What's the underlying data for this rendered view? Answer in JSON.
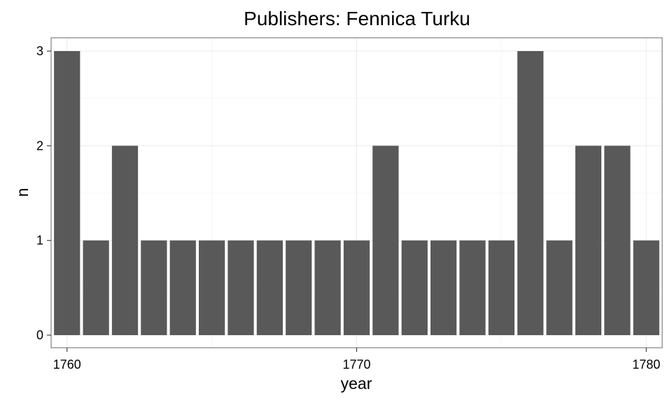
{
  "chart_data": {
    "type": "bar",
    "title": "Publishers: Fennica Turku",
    "xlabel": "year",
    "ylabel": "n",
    "x": [
      1760,
      1761,
      1762,
      1763,
      1764,
      1765,
      1766,
      1767,
      1768,
      1769,
      1770,
      1771,
      1772,
      1773,
      1774,
      1775,
      1776,
      1777,
      1778,
      1779,
      1780
    ],
    "values": [
      3,
      1,
      2,
      1,
      1,
      1,
      1,
      1,
      1,
      1,
      1,
      2,
      1,
      1,
      1,
      1,
      3,
      1,
      2,
      2,
      1
    ],
    "xticks": [
      1760,
      1770,
      1780
    ],
    "yticks": [
      0,
      1,
      2,
      3
    ],
    "xlim": [
      1759.45,
      1780.55
    ],
    "ylim": [
      0,
      3
    ],
    "grid": true,
    "bar_color": "#595959",
    "grid_color": "#ebebeb",
    "border_color": "#808080"
  }
}
